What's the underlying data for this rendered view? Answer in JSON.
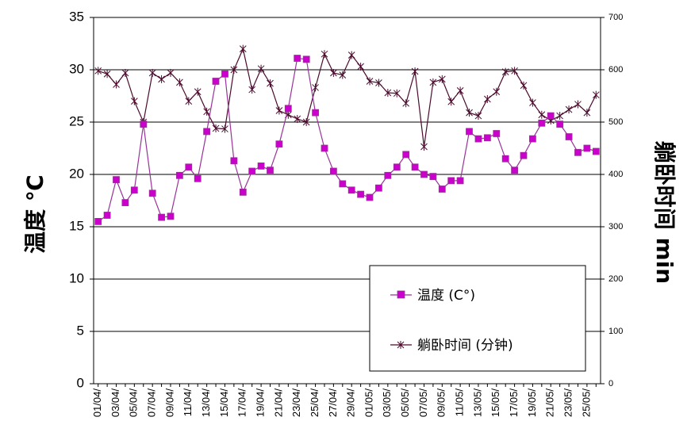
{
  "chart_data": {
    "type": "line",
    "ylabel": "温度 ℃",
    "y2label": "躺卧时间 min",
    "ylim": [
      0,
      35
    ],
    "y2lim": [
      0,
      700
    ],
    "yticks": [
      "0",
      "5",
      "10",
      "15",
      "20",
      "25",
      "30",
      "35"
    ],
    "y2ticks": [
      "0",
      "100",
      "200",
      "300",
      "400",
      "500",
      "600",
      "700"
    ],
    "grid": "horizontal",
    "legend_position": "bottom-right",
    "xlabels": [
      "01/04/",
      "03/04/",
      "05/04/",
      "07/04/",
      "09/04/",
      "11/04/",
      "13/04/",
      "15/04/",
      "17/04/",
      "19/04/",
      "21/04/",
      "23/04/",
      "25/04/",
      "27/04/",
      "29/04/",
      "01/05/",
      "03/05/",
      "05/05/",
      "07/05/",
      "09/05/",
      "11/05/",
      "13/05/",
      "15/05/",
      "17/05/",
      "19/05/",
      "21/05/",
      "23/05/",
      "25/05/"
    ],
    "series": [
      {
        "name": "温度 (C°)",
        "axis": "left",
        "color": "#cc00cc",
        "line_color": "#993399",
        "marker": "square",
        "values": [
          15.5,
          16.1,
          19.5,
          17.3,
          18.5,
          24.8,
          18.2,
          15.9,
          16.0,
          19.9,
          20.7,
          19.6,
          24.1,
          28.9,
          29.6,
          21.3,
          18.3,
          20.3,
          20.8,
          20.4,
          22.9,
          26.3,
          31.1,
          31.0,
          25.9,
          22.5,
          20.3,
          19.1,
          18.5,
          18.1,
          17.8,
          18.7,
          19.9,
          20.7,
          21.9,
          20.7,
          20.0,
          19.8,
          18.6,
          19.4,
          19.4,
          24.1,
          23.4,
          23.5,
          23.9,
          21.5,
          20.4,
          21.8,
          23.4,
          24.9,
          25.6,
          24.8,
          23.6,
          22.1,
          22.5,
          22.2
        ]
      },
      {
        "name": "躺卧时间 (分钟)",
        "axis": "right",
        "color": "#4b0a2d",
        "marker": "star",
        "values": [
          598,
          592,
          572,
          594,
          540,
          500,
          594,
          582,
          594,
          576,
          540,
          558,
          520,
          488,
          487,
          600,
          640,
          562,
          602,
          574,
          522,
          514,
          506,
          500,
          566,
          630,
          594,
          590,
          628,
          606,
          578,
          575,
          556,
          555,
          536,
          597,
          453,
          576,
          582,
          539,
          560,
          518,
          512,
          544,
          558,
          596,
          598,
          570,
          537,
          514,
          503,
          512,
          524,
          534,
          518,
          552
        ]
      }
    ]
  }
}
